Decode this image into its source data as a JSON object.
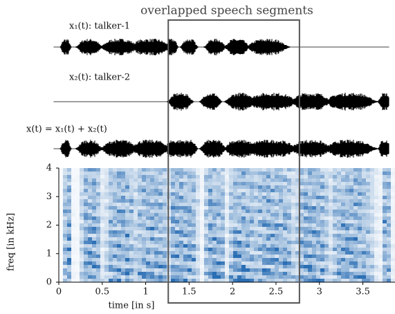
{
  "chart_data": {
    "type": "spectrogram",
    "annotation": "overlapped speech segments",
    "highlight": [
      1.26,
      2.77
    ],
    "waveforms": [
      {
        "label": "x₁(t): talker-1"
      },
      {
        "label": "x₂(t): talker-2"
      },
      {
        "label": "x(t) = x₁(t) + x₂(t)"
      }
    ],
    "xlabel": "time [in s]",
    "ylabel": "freq [in kHz]",
    "xlim": [
      0,
      3.87
    ],
    "xticks": [
      0,
      0.5,
      1,
      1.5,
      2,
      2.5,
      3,
      3.5
    ],
    "ylim": [
      0,
      4
    ],
    "yticks": [
      0,
      1,
      2,
      3,
      4
    ],
    "color": "#1f66b0"
  }
}
